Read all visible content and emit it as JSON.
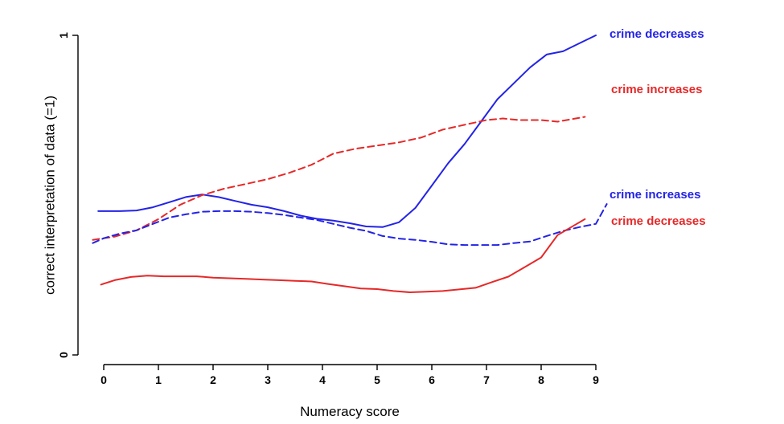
{
  "chart_data": {
    "type": "line",
    "title": "",
    "xlabel": "Numeracy score",
    "ylabel": "correct interpretation of data (=1)",
    "xlim": [
      -0.4,
      9.2
    ],
    "ylim": [
      0,
      1
    ],
    "xticks": [
      "0",
      "1",
      "2",
      "3",
      "4",
      "5",
      "6",
      "7",
      "8",
      "9"
    ],
    "yticks": [
      "0",
      "1"
    ],
    "grid": false,
    "series": [
      {
        "name": "crime decreases",
        "color": "#2323e6",
        "dash": "solid",
        "x": [
          -0.1,
          0.3,
          0.6,
          0.9,
          1.2,
          1.5,
          1.8,
          2.1,
          2.4,
          2.7,
          3.0,
          3.3,
          3.6,
          3.9,
          4.2,
          4.5,
          4.8,
          5.1,
          5.4,
          5.7,
          6.0,
          6.3,
          6.6,
          6.9,
          7.2,
          7.5,
          7.8,
          8.1,
          8.4,
          8.7,
          9.0
        ],
        "y": [
          0.45,
          0.45,
          0.452,
          0.462,
          0.478,
          0.494,
          0.502,
          0.494,
          0.482,
          0.47,
          0.462,
          0.45,
          0.436,
          0.426,
          0.42,
          0.412,
          0.402,
          0.4,
          0.415,
          0.46,
          0.53,
          0.6,
          0.66,
          0.73,
          0.8,
          0.85,
          0.9,
          0.94,
          0.95,
          0.975,
          1.0
        ]
      },
      {
        "name": "crime increases",
        "color": "#e62828",
        "dash": "dashed",
        "x": [
          -0.2,
          0.2,
          0.6,
          1.0,
          1.4,
          1.8,
          2.2,
          2.6,
          3.0,
          3.4,
          3.8,
          4.2,
          4.6,
          5.0,
          5.4,
          5.8,
          6.2,
          6.6,
          7.0,
          7.3,
          7.6,
          8.0,
          8.3,
          8.8
        ],
        "y": [
          0.36,
          0.37,
          0.39,
          0.425,
          0.47,
          0.5,
          0.52,
          0.535,
          0.55,
          0.57,
          0.595,
          0.63,
          0.645,
          0.655,
          0.665,
          0.68,
          0.705,
          0.72,
          0.735,
          0.74,
          0.735,
          0.735,
          0.73,
          0.745
        ]
      },
      {
        "name": "crime increases",
        "color": "#2323e6",
        "dash": "dashed",
        "x": [
          -0.2,
          0.0,
          0.3,
          0.6,
          0.9,
          1.2,
          1.5,
          1.8,
          2.1,
          2.4,
          2.7,
          3.0,
          3.3,
          3.6,
          3.9,
          4.2,
          4.5,
          4.8,
          5.1,
          5.4,
          5.7,
          6.0,
          6.3,
          6.6,
          6.9,
          7.2,
          7.5,
          7.8,
          8.1,
          8.4,
          8.7,
          9.0,
          9.2
        ],
        "y": [
          0.35,
          0.365,
          0.38,
          0.39,
          0.41,
          0.43,
          0.44,
          0.448,
          0.45,
          0.45,
          0.448,
          0.444,
          0.438,
          0.43,
          0.422,
          0.41,
          0.398,
          0.388,
          0.372,
          0.364,
          0.36,
          0.354,
          0.346,
          0.344,
          0.344,
          0.344,
          0.35,
          0.355,
          0.372,
          0.388,
          0.4,
          0.41,
          0.472
        ]
      },
      {
        "name": "crime decreases",
        "color": "#e62828",
        "dash": "solid",
        "x": [
          -0.05,
          0.2,
          0.5,
          0.8,
          1.1,
          1.4,
          1.7,
          2.0,
          2.3,
          2.6,
          2.9,
          3.2,
          3.5,
          3.8,
          4.1,
          4.4,
          4.7,
          5.0,
          5.3,
          5.6,
          5.9,
          6.2,
          6.5,
          6.8,
          7.1,
          7.4,
          7.7,
          8.0,
          8.3,
          8.6,
          8.8
        ],
        "y": [
          0.22,
          0.234,
          0.244,
          0.248,
          0.246,
          0.246,
          0.246,
          0.242,
          0.24,
          0.238,
          0.236,
          0.234,
          0.232,
          0.23,
          0.222,
          0.215,
          0.208,
          0.206,
          0.2,
          0.196,
          0.198,
          0.2,
          0.205,
          0.21,
          0.228,
          0.245,
          0.275,
          0.305,
          0.375,
          0.405,
          0.425
        ]
      }
    ]
  }
}
